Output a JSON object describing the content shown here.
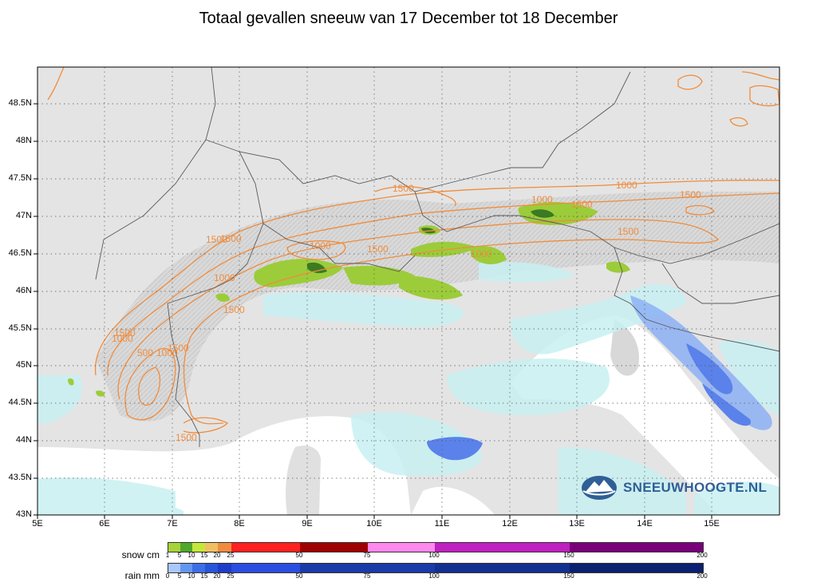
{
  "title": "Totaal gevallen sneeuw van 17 December tot 18 December",
  "y_labels": [
    "48.5N",
    "48N",
    "47.5N",
    "47N",
    "46.5N",
    "46N",
    "45.5N",
    "45N",
    "44.5N",
    "44N",
    "43.5N",
    "43N"
  ],
  "x_labels": [
    "5E",
    "6E",
    "7E",
    "8E",
    "9E",
    "10E",
    "11E",
    "12E",
    "13E",
    "14E",
    "15E"
  ],
  "contour_labels": [
    "1500",
    "1000",
    "1500",
    "1000",
    "1500",
    "1500",
    "1000",
    "1500",
    "1000",
    "1500",
    "1500",
    "1000",
    "1500",
    "1000",
    "500",
    "1000",
    "1500",
    "1500",
    "1500"
  ],
  "logo": {
    "text": "SNEEUWHOOGTE.NL"
  },
  "legend": {
    "snow": {
      "title": "snow cm",
      "ticks": [
        "1",
        "5",
        "10",
        "15",
        "20",
        "25",
        "50",
        "75",
        "100",
        "150",
        "200"
      ],
      "colors": [
        "#a6d33a",
        "#4fa82c",
        "#c4e83a",
        "#f0c060",
        "#f08c40",
        "#ff2020",
        "#a00000",
        "#ff88ee",
        "#c020c0",
        "#7a007a"
      ]
    },
    "rain": {
      "title": "rain mm",
      "ticks": [
        "0",
        "5",
        "10",
        "15",
        "20",
        "25",
        "50",
        "75",
        "100",
        "150",
        "200"
      ],
      "colors": [
        "#a8c8ff",
        "#6496f0",
        "#3c6ee6",
        "#2855d8",
        "#1e3cc8",
        "#2a4ee0",
        "#1a3aa8",
        "#1a3aa8",
        "#123090",
        "#0a2070"
      ]
    }
  }
}
